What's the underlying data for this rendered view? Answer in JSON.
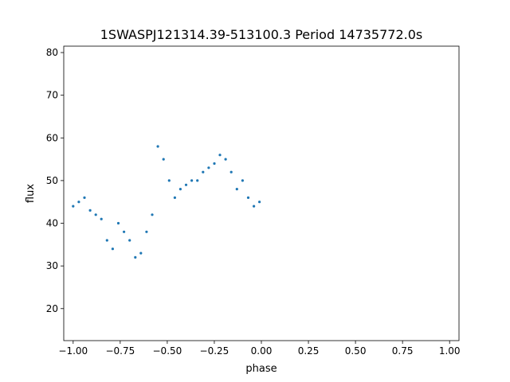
{
  "chart_data": {
    "type": "scatter",
    "title": "1SWASPJ121314.39-513100.3 Period 14735772.0s",
    "xlabel": "phase",
    "ylabel": "flux",
    "xlim": [
      -1.05,
      1.05
    ],
    "ylim": [
      12.5,
      81.5
    ],
    "xticks": [
      -1.0,
      -0.75,
      -0.5,
      -0.25,
      0.0,
      0.25,
      0.5,
      0.75,
      1.0
    ],
    "xtick_labels": [
      "−1.00",
      "−0.75",
      "−0.50",
      "−0.25",
      "0.00",
      "0.25",
      "0.50",
      "0.75",
      "1.00"
    ],
    "yticks": [
      20,
      30,
      40,
      50,
      60,
      70,
      80
    ],
    "ytick_labels": [
      "20",
      "30",
      "40",
      "50",
      "60",
      "70",
      "80"
    ],
    "grid": false,
    "point_color": "#1f77b4",
    "series": [
      {
        "phase": [
          -1.0,
          -0.97,
          -0.94,
          -0.91,
          -0.88,
          -0.85,
          -0.82,
          -0.79,
          -0.76,
          -0.73,
          -0.7,
          -0.67,
          -0.64,
          -0.61,
          -0.58,
          -0.55,
          -0.52,
          -0.49,
          -0.46,
          -0.43,
          -0.4,
          -0.37,
          -0.34,
          -0.31,
          -0.28,
          -0.25,
          -0.22,
          -0.19,
          -0.16,
          -0.13,
          -0.1,
          -0.07,
          -0.04,
          -0.01
        ],
        "flux": [
          44,
          45,
          46,
          43,
          42,
          41,
          36,
          34,
          40,
          38,
          36,
          32,
          33,
          38,
          42,
          58,
          55,
          50,
          46,
          48,
          49,
          50,
          50,
          52,
          53,
          54,
          56,
          55,
          52,
          48,
          50,
          46,
          44,
          45
        ]
      }
    ]
  }
}
